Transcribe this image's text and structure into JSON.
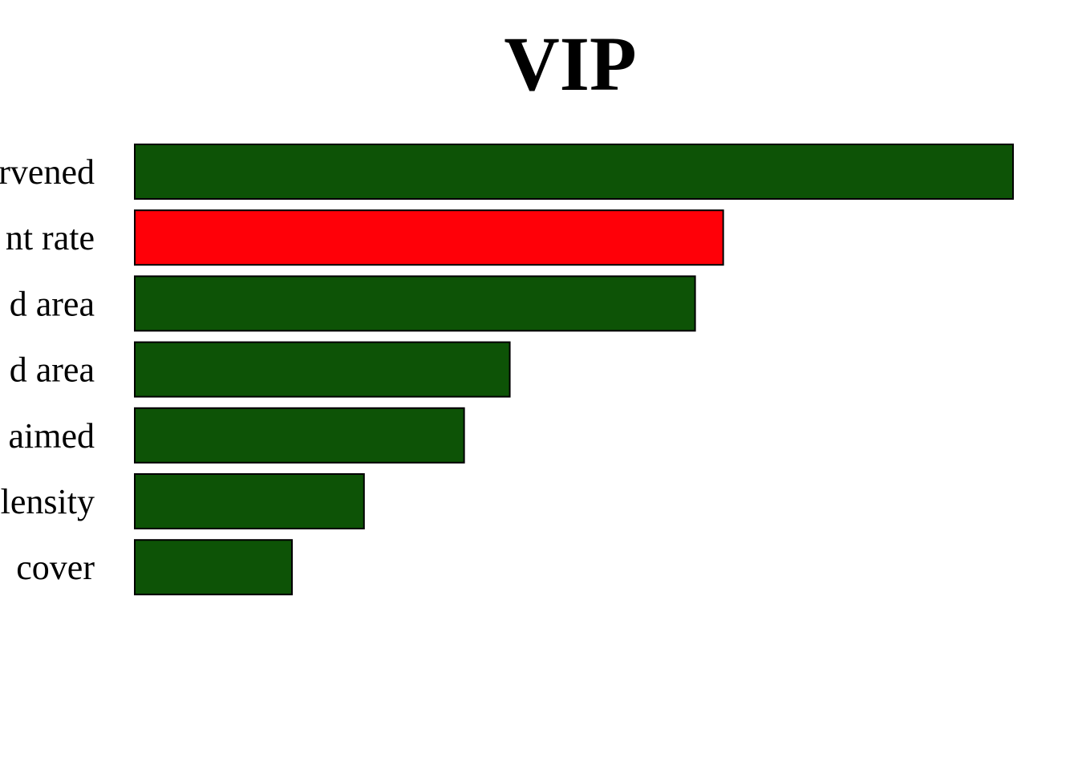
{
  "chart_data": {
    "type": "bar",
    "orientation": "horizontal",
    "title": "VIP",
    "xlabel": "",
    "ylabel": "",
    "grid": false,
    "legend": "none",
    "xlim": [
      0,
      1
    ],
    "categories": [
      "rvened",
      "nt rate",
      "d area",
      "d area",
      "aimed",
      "lensity",
      " cover"
    ],
    "values": [
      1.0,
      0.67,
      0.638,
      0.427,
      0.375,
      0.261,
      0.179
    ],
    "colors": [
      "#0d5306",
      "#ff0008",
      "#0d5306",
      "#0d5306",
      "#0d5306",
      "#0d5306",
      "#0d5306"
    ]
  }
}
